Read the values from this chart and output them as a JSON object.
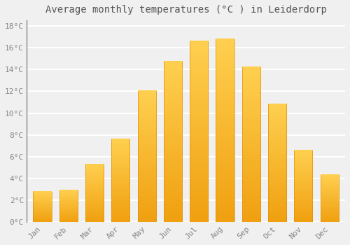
{
  "title": "Average monthly temperatures (°C ) in Leiderdorp",
  "months": [
    "Jan",
    "Feb",
    "Mar",
    "Apr",
    "May",
    "Jun",
    "Jul",
    "Aug",
    "Sep",
    "Oct",
    "Nov",
    "Dec"
  ],
  "temperatures": [
    2.8,
    2.9,
    5.3,
    7.6,
    12.0,
    14.7,
    16.6,
    16.8,
    14.2,
    10.8,
    6.6,
    4.3
  ],
  "bar_color_main": "#FFB626",
  "bar_color_top": "#FFD060",
  "bar_color_bottom": "#F0A010",
  "ylim": [
    0,
    18.5
  ],
  "yticks": [
    0,
    2,
    4,
    6,
    8,
    10,
    12,
    14,
    16,
    18
  ],
  "ytick_labels": [
    "0°C",
    "2°C",
    "4°C",
    "6°C",
    "8°C",
    "10°C",
    "12°C",
    "14°C",
    "16°C",
    "18°C"
  ],
  "background_color": "#f0f0f0",
  "plot_bg_color": "#f0f0f0",
  "grid_color": "#ffffff",
  "title_fontsize": 10,
  "tick_fontsize": 8,
  "bar_width": 0.7,
  "left_spine_color": "#888888"
}
